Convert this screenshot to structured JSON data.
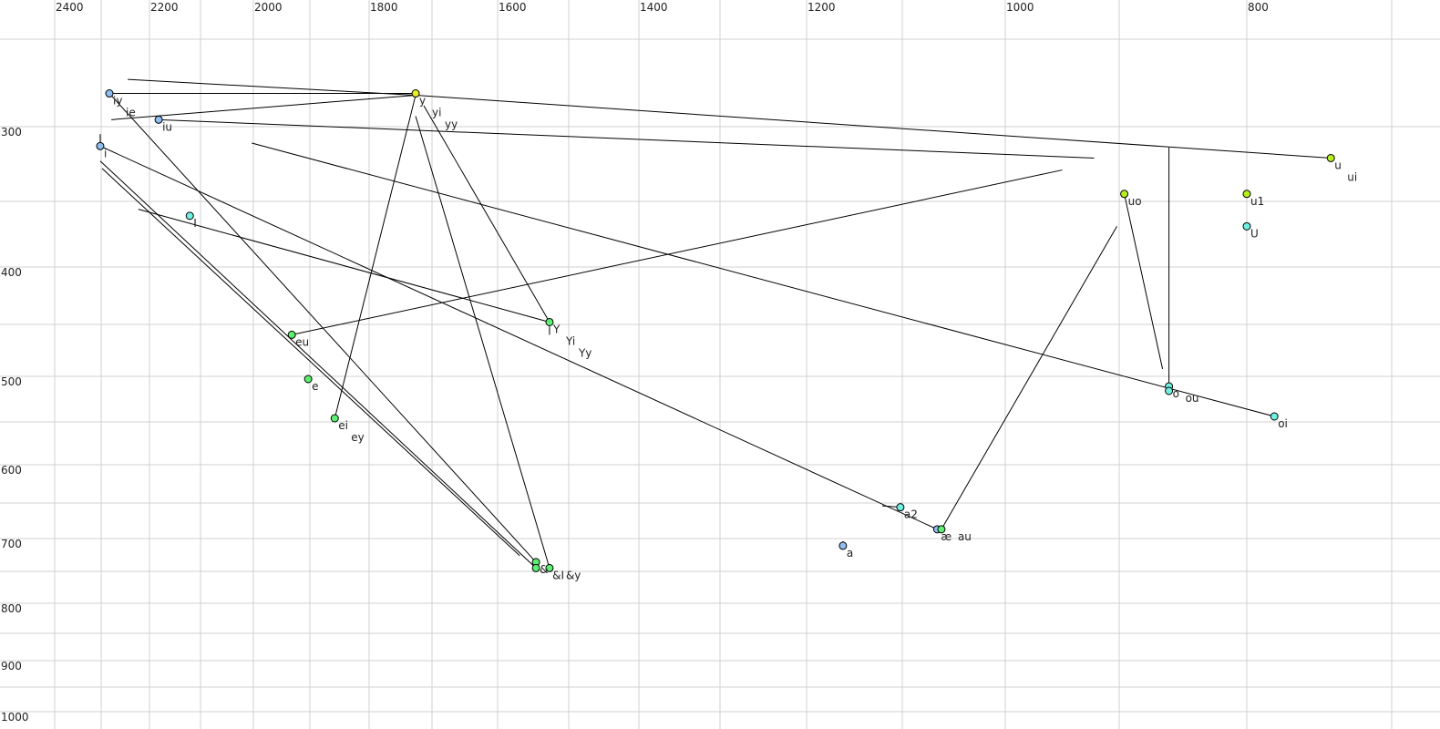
{
  "chart_data": {
    "type": "scatter",
    "title": "",
    "xlabel": "",
    "ylabel": "",
    "x_axis_reversed": true,
    "y_axis_reversed": true,
    "xlim": [
      2500,
      680
    ],
    "ylim": [
      250,
      1000
    ],
    "grid": true,
    "x_ticks": [
      2400,
      2200,
      2000,
      1800,
      1600,
      1400,
      1200,
      1000,
      800
    ],
    "y_ticks": [
      300,
      400,
      500,
      600,
      700,
      800,
      900,
      1000
    ],
    "colors": {
      "blue": "#8fbef0",
      "cyan": "#70f0e0",
      "green": "#5cf070",
      "lime": "#b4f020",
      "yellow": "#e4f020"
    },
    "points": [
      {
        "labels": [
          "iy",
          "ie"
        ],
        "f2": 2283,
        "f1": 281,
        "color": "blue"
      },
      {
        "labels": [
          "y",
          "yi",
          "yy"
        ],
        "f2": 1726,
        "f1": 281,
        "color": "yellow"
      },
      {
        "labels": [
          "iu"
        ],
        "f2": 2182,
        "f1": 296,
        "color": "blue"
      },
      {
        "labels": [
          "i"
        ],
        "f2": 2302,
        "f1": 313,
        "color": "blue"
      },
      {
        "labels": [
          "I"
        ],
        "f2": 2121,
        "f1": 361,
        "color": "cyan"
      },
      {
        "labels": [
          "uo"
        ],
        "f2": 896,
        "f1": 345,
        "color": "lime"
      },
      {
        "labels": [
          "u1"
        ],
        "f2": 800,
        "f1": 345,
        "color": "lime"
      },
      {
        "labels": [
          "U"
        ],
        "f2": 800,
        "f1": 369,
        "color": "cyan"
      },
      {
        "labels": [
          "u",
          "ui"
        ],
        "f2": 742,
        "f1": 321,
        "color": "lime"
      },
      {
        "labels": [
          "Y",
          "Yi",
          "Yy"
        ],
        "f2": 1527,
        "f1": 448,
        "color": "green"
      },
      {
        "labels": [
          "eu"
        ],
        "f2": 1932,
        "f1": 460,
        "color": "green"
      },
      {
        "labels": [
          "e"
        ],
        "f2": 1903,
        "f1": 503,
        "color": "green"
      },
      {
        "labels": [
          "ei",
          "ey"
        ],
        "f2": 1858,
        "f1": 546,
        "color": "green"
      },
      {
        "labels": [
          "&"
        ],
        "f2": 1546,
        "f1": 736,
        "color": "green"
      },
      {
        "labels": [
          "&I"
        ],
        "f2": 1546,
        "f1": 745,
        "color": "green"
      },
      {
        "labels": [
          "&y"
        ],
        "f2": 1527,
        "f1": 745,
        "color": "green"
      },
      {
        "labels": [
          "a2"
        ],
        "f2": 1102,
        "f1": 656,
        "color": "cyan"
      },
      {
        "labels": [
          "æ"
        ],
        "f2": 1066,
        "f1": 687,
        "color": "blue"
      },
      {
        "labels": [
          "au"
        ],
        "f2": 1062,
        "f1": 687,
        "color": "green"
      },
      {
        "labels": [
          "a"
        ],
        "f2": 1162,
        "f1": 711,
        "color": "blue"
      },
      {
        "labels": [
          "o"
        ],
        "f2": 861,
        "f1": 511,
        "color": "cyan"
      },
      {
        "labels": [
          "ou"
        ],
        "f2": 861,
        "f1": 516,
        "color": "cyan"
      },
      {
        "labels": [
          "oi"
        ],
        "f2": 781,
        "f1": 544,
        "color": "cyan"
      }
    ],
    "segments": [
      [
        [
          2245,
          273
        ],
        [
          1726,
          282
        ]
      ],
      [
        [
          2283,
          281
        ],
        [
          1726,
          281
        ]
      ],
      [
        [
          2279,
          296
        ],
        [
          1726,
          282
        ]
      ],
      [
        [
          1726,
          282
        ],
        [
          742,
          321
        ]
      ],
      [
        [
          2182,
          296
        ],
        [
          922,
          321
        ]
      ],
      [
        [
          2003,
          311
        ],
        [
          781,
          544
        ]
      ],
      [
        [
          2302,
          313
        ],
        [
          1066,
          687
        ]
      ],
      [
        [
          1121,
          654
        ],
        [
          1102,
          656
        ]
      ],
      [
        [
          2302,
          323
        ],
        [
          1546,
          745
        ]
      ],
      [
        [
          2298,
          328
        ],
        [
          1569,
          726
        ]
      ],
      [
        [
          2283,
          281
        ],
        [
          1546,
          736
        ]
      ],
      [
        [
          2223,
          356
        ],
        [
          1527,
          448
        ]
      ],
      [
        [
          1932,
          460
        ],
        [
          950,
          329
        ]
      ],
      [
        [
          1858,
          546
        ],
        [
          1726,
          282
        ]
      ],
      [
        [
          1726,
          294
        ],
        [
          1527,
          745
        ]
      ],
      [
        [
          1713,
          288
        ],
        [
          1527,
          448
        ]
      ],
      [
        [
          896,
          345
        ],
        [
          866,
          493
        ]
      ],
      [
        [
          861,
          314
        ],
        [
          861,
          511
        ]
      ],
      [
        [
          902,
          369
        ],
        [
          1062,
          687
        ]
      ],
      [
        [
          2302,
          305
        ],
        [
          2302,
          313
        ]
      ],
      [
        [
          1162,
          704
        ],
        [
          1162,
          711
        ]
      ],
      [
        [
          1527,
          452
        ],
        [
          1527,
          460
        ]
      ]
    ]
  }
}
